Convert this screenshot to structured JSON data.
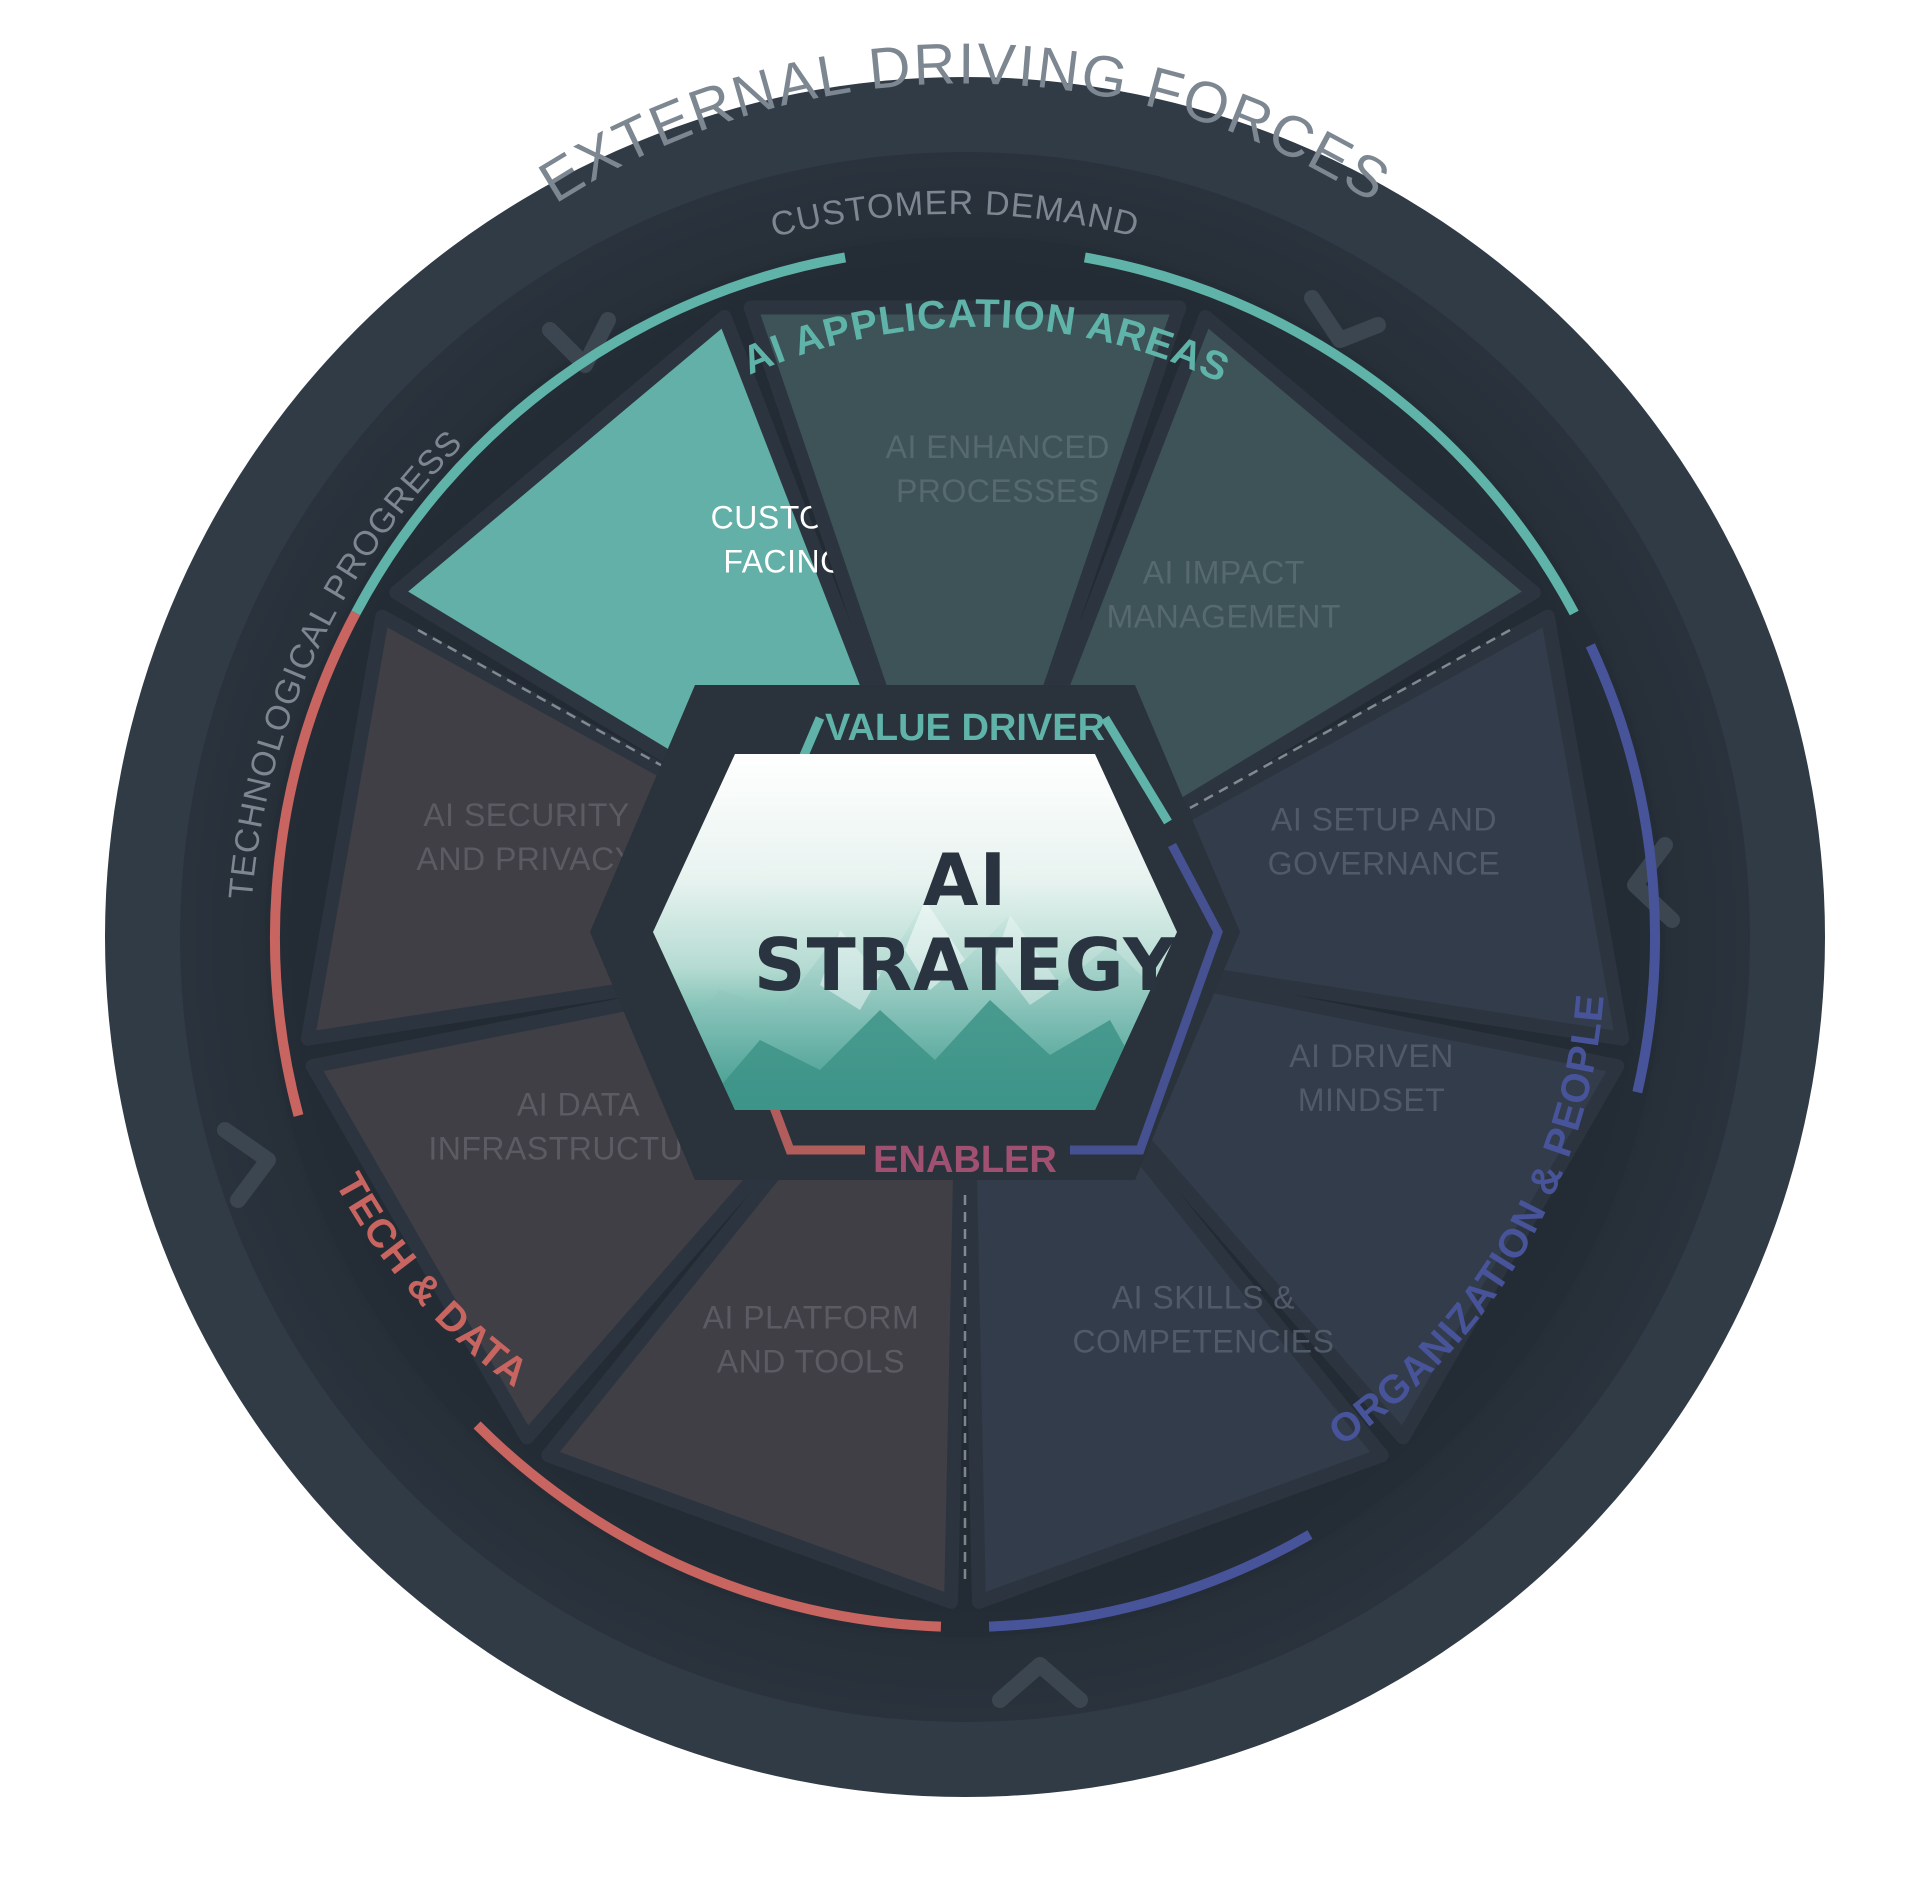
{
  "outer_ring": {
    "title": "EXTERNAL DRIVING FORCES",
    "forces": [
      {
        "label": "CUSTOMER DEMAND"
      },
      {
        "label": "TECHNOLOGICAL PROGRESS"
      }
    ]
  },
  "groups": {
    "application": {
      "label": "AI APPLICATION AREAS",
      "color": "#5fb3a9"
    },
    "tech": {
      "label": "TECH & DATA",
      "color": "#c96560"
    },
    "org": {
      "label": "ORGANIZATION & PEOPLE",
      "color": "#48549a"
    }
  },
  "segments": [
    {
      "label": [
        "CUSTOMER",
        "FACING AI"
      ],
      "group": "application",
      "fill": "#63b0a8",
      "text_color": "#ffffff",
      "highlighted": true
    },
    {
      "label": [
        "AI ENHANCED",
        "PROCESSES"
      ],
      "group": "application",
      "fill": "#3d5358",
      "text_color": "#56696e"
    },
    {
      "label": [
        "AI IMPACT",
        "MANAGEMENT"
      ],
      "group": "application",
      "fill": "#3d5358",
      "text_color": "#56696e"
    },
    {
      "label": [
        "AI SETUP AND",
        "GOVERNANCE"
      ],
      "group": "org",
      "fill": "#323c4b",
      "text_color": "#505a69"
    },
    {
      "label": [
        "AI DRIVEN",
        "MINDSET"
      ],
      "group": "org",
      "fill": "#323c4b",
      "text_color": "#505a69"
    },
    {
      "label": [
        "AI SKILLS &",
        "COMPETENCIES"
      ],
      "group": "org",
      "fill": "#323c4b",
      "text_color": "#505a69"
    },
    {
      "label": [
        "AI PLATFORM",
        "AND TOOLS"
      ],
      "group": "tech",
      "fill": "#413f46",
      "text_color": "#5c5a62"
    },
    {
      "label": [
        "AI DATA",
        "INFRASTRUCTURE"
      ],
      "group": "tech",
      "fill": "#413f46",
      "text_color": "#5c5a62"
    },
    {
      "label": [
        "AI SECURITY",
        "AND PRIVACY"
      ],
      "group": "tech",
      "fill": "#413f46",
      "text_color": "#5c5a62"
    }
  ],
  "hub": {
    "title_line1": "AI",
    "title_line2": "STRATEGY",
    "value_driver": "VALUE DRIVER",
    "enabler": "ENABLER",
    "value_driver_color": "#5fb3a9",
    "enabler_color": "#a05070"
  },
  "colors": {
    "outer_ring": "#303b46",
    "inner_dark": "#262e37",
    "ring_text": "#7d8791",
    "chevron": "#3c4651"
  }
}
